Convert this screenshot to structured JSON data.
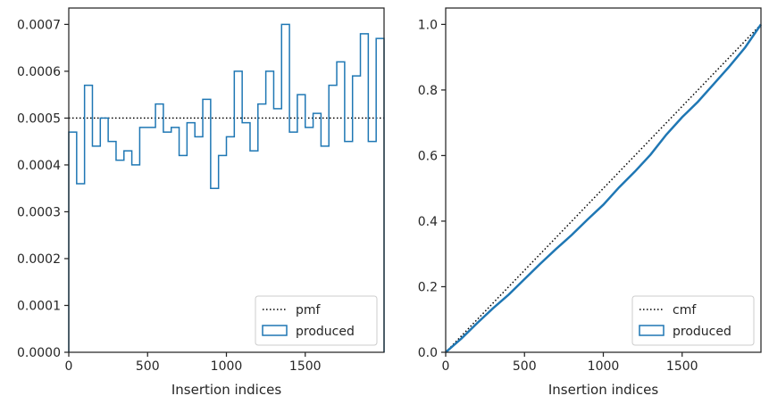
{
  "chart_data": [
    {
      "type": "step-histogram",
      "title": "",
      "xlabel": "Insertion indices",
      "ylabel": "",
      "xlim": [
        0,
        2000
      ],
      "ylim": [
        0,
        0.000735
      ],
      "xticks": [
        0,
        500,
        1000,
        1500
      ],
      "xtick_labels": [
        "0",
        "500",
        "1000",
        "1500"
      ],
      "yticks": [
        0,
        0.0001,
        0.0002,
        0.0003,
        0.0004,
        0.0005,
        0.0006,
        0.0007
      ],
      "ytick_labels": [
        "0.0000",
        "0.0001",
        "0.0002",
        "0.0003",
        "0.0004",
        "0.0005",
        "0.0006",
        "0.0007"
      ],
      "grid": false,
      "legend_position": "lower-right",
      "series": [
        {
          "name": "pmf",
          "style": "dotted",
          "color": "#000000",
          "x": [
            0,
            2000
          ],
          "y": [
            0.0005,
            0.0005
          ]
        },
        {
          "name": "produced",
          "style": "step",
          "color": "#1f77b4",
          "bin_edges": [
            0,
            50,
            100,
            150,
            200,
            250,
            300,
            350,
            400,
            450,
            500,
            550,
            600,
            650,
            700,
            750,
            800,
            850,
            900,
            950,
            1000,
            1050,
            1100,
            1150,
            1200,
            1250,
            1300,
            1350,
            1400,
            1450,
            1500,
            1550,
            1600,
            1650,
            1700,
            1750,
            1800,
            1850,
            1900,
            1950,
            2000
          ],
          "values": [
            0.00047,
            0.00036,
            0.00057,
            0.00044,
            0.0005,
            0.00045,
            0.00041,
            0.00043,
            0.0004,
            0.00048,
            0.00048,
            0.00053,
            0.00047,
            0.00048,
            0.00042,
            0.00049,
            0.00046,
            0.00054,
            0.00035,
            0.00042,
            0.00046,
            0.0006,
            0.00049,
            0.00043,
            0.00053,
            0.0006,
            0.00052,
            0.0007,
            0.00047,
            0.00055,
            0.00048,
            0.00051,
            0.00044,
            0.00057,
            0.00062,
            0.00045,
            0.00059,
            0.00068,
            0.00045,
            0.00067
          ]
        }
      ]
    },
    {
      "type": "line",
      "title": "",
      "xlabel": "Insertion indices",
      "ylabel": "",
      "xlim": [
        0,
        2000
      ],
      "ylim": [
        0,
        1.05
      ],
      "xticks": [
        0,
        500,
        1000,
        1500
      ],
      "xtick_labels": [
        "0",
        "500",
        "1000",
        "1500"
      ],
      "yticks": [
        0,
        0.2,
        0.4,
        0.6,
        0.8,
        1.0
      ],
      "ytick_labels": [
        "0.0",
        "0.2",
        "0.4",
        "0.6",
        "0.8",
        "1.0"
      ],
      "grid": false,
      "legend_position": "lower-right",
      "series": [
        {
          "name": "cmf",
          "style": "dotted",
          "color": "#000000",
          "x": [
            0,
            2000
          ],
          "y": [
            0,
            1.0
          ]
        },
        {
          "name": "produced",
          "style": "line",
          "color": "#1f77b4",
          "x": [
            0,
            100,
            200,
            300,
            400,
            500,
            600,
            700,
            800,
            900,
            1000,
            1100,
            1200,
            1300,
            1400,
            1500,
            1600,
            1700,
            1800,
            1900,
            2000
          ],
          "y": [
            0,
            0.042,
            0.089,
            0.134,
            0.176,
            0.223,
            0.27,
            0.315,
            0.358,
            0.405,
            0.45,
            0.503,
            0.551,
            0.603,
            0.664,
            0.717,
            0.764,
            0.818,
            0.872,
            0.93,
            1.0
          ]
        }
      ]
    }
  ]
}
